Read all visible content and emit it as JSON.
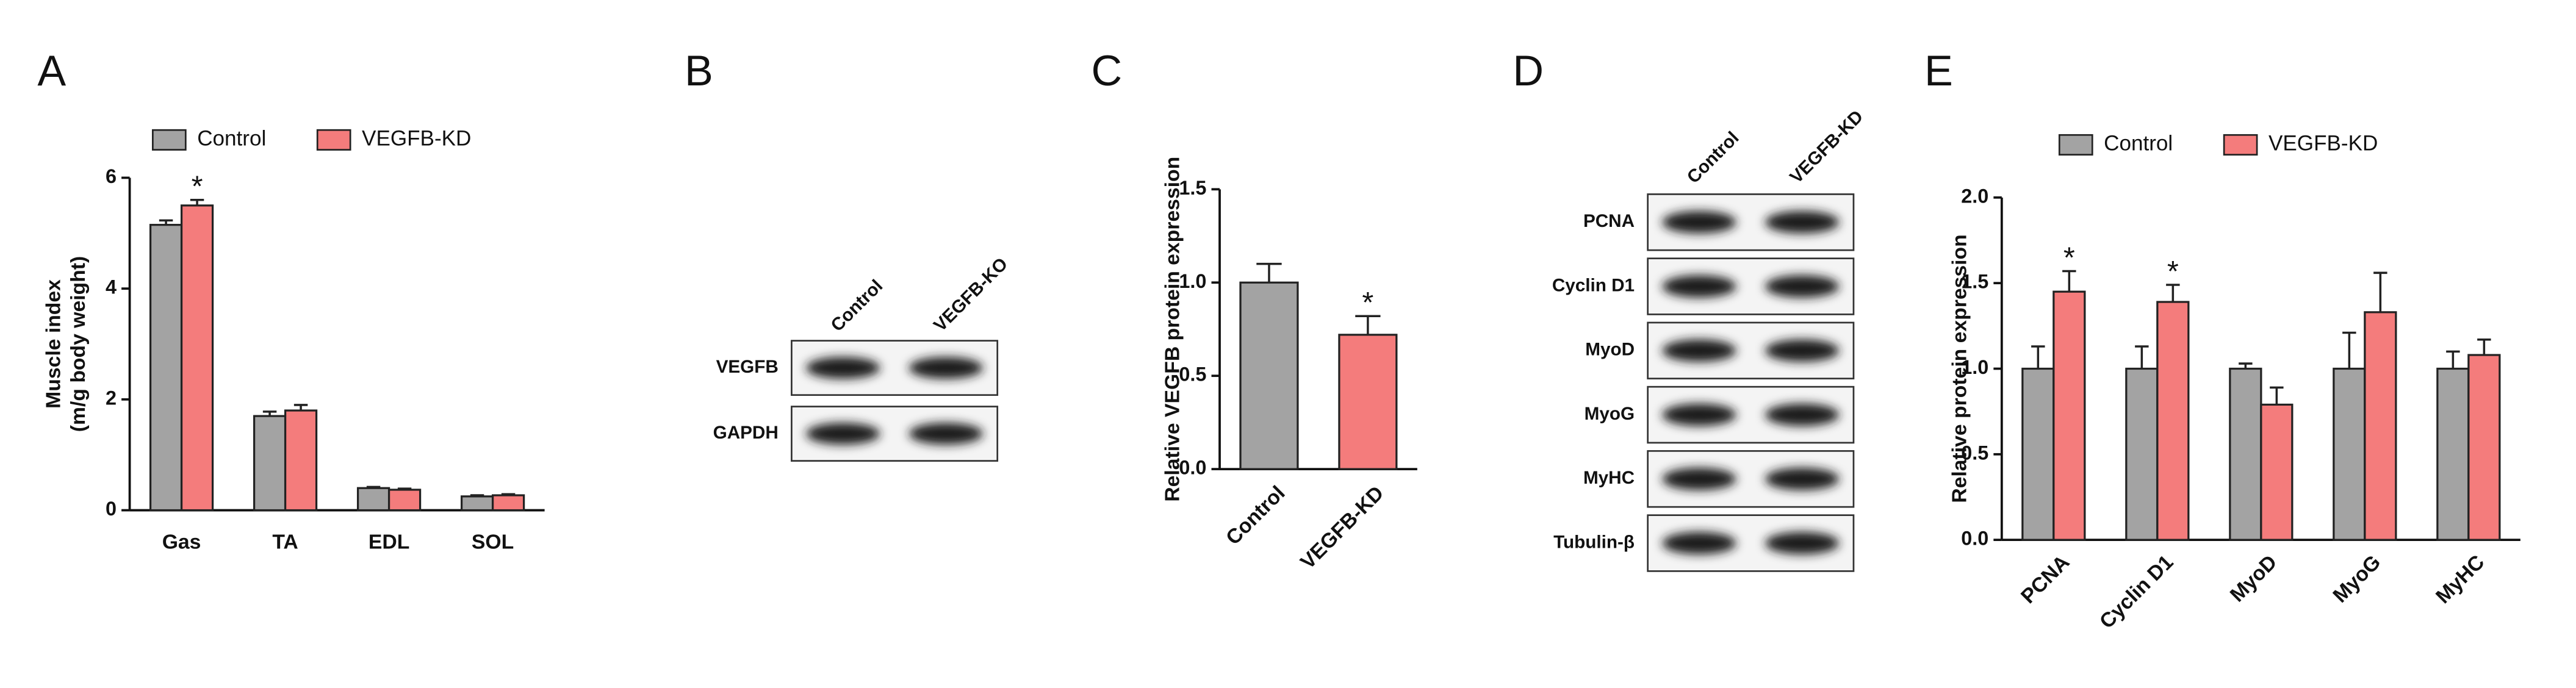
{
  "chart_data": [
    {
      "type": "bar",
      "panel": "A",
      "y_label": [
        "Muscle index",
        "(m/g body weight)"
      ],
      "categories": [
        "Gas",
        "TA",
        "EDL",
        "SOL"
      ],
      "series": [
        {
          "name": "Control",
          "color": "#a3a3a3",
          "values": [
            5.15,
            1.7,
            0.4,
            0.25
          ],
          "errors": [
            0.08,
            0.08,
            0.02,
            0.02
          ],
          "marks": [
            null,
            null,
            null,
            null
          ]
        },
        {
          "name": "VEGFB-KD",
          "color": "#f47c7c",
          "values": [
            5.5,
            1.8,
            0.37,
            0.27
          ],
          "errors": [
            0.1,
            0.1,
            0.02,
            0.02
          ],
          "marks": [
            "*",
            null,
            null,
            null
          ]
        }
      ],
      "ylim": [
        0,
        6
      ],
      "yticks": [
        0,
        2,
        4,
        6
      ],
      "legend": "top"
    },
    {
      "type": "bar",
      "panel": "C",
      "y_label": "Relative VEGFB protein expression",
      "categories": [
        "Control",
        "VEGFB-KD"
      ],
      "values": [
        1.0,
        0.72
      ],
      "errors": [
        0.1,
        0.1
      ],
      "colors": [
        "#a3a3a3",
        "#f47c7c"
      ],
      "marks": [
        null,
        "*"
      ],
      "ylim": [
        0,
        1.5
      ],
      "yticks": [
        {
          "value": 0,
          "label": "0.0"
        },
        {
          "value": 0.5,
          "label": "0.5"
        },
        {
          "value": 1,
          "label": "1.0"
        },
        {
          "value": 1.5,
          "label": "1.5"
        }
      ]
    },
    {
      "type": "bar",
      "panel": "E",
      "y_label": "Relative protein expression",
      "categories": [
        "PCNA",
        "Cyclin D1",
        "MyoD",
        "MyoG",
        "MyHC"
      ],
      "series": [
        {
          "name": "Control",
          "color": "#a3a3a3",
          "values": [
            1,
            1,
            1,
            1,
            1
          ],
          "errors": [
            0.13,
            0.13,
            0.03,
            0.21,
            0.1
          ],
          "marks": [
            null,
            null,
            null,
            null,
            null
          ]
        },
        {
          "name": "VEGFB-KD",
          "color": "#f47c7c",
          "values": [
            1.45,
            1.39,
            0.79,
            1.33,
            1.08
          ],
          "errors": [
            0.12,
            0.1,
            0.1,
            0.23,
            0.09
          ],
          "marks": [
            "*",
            "*",
            null,
            null,
            null
          ]
        }
      ],
      "ylim": [
        0,
        2
      ],
      "yticks": [
        {
          "value": 0,
          "label": "0.0"
        },
        {
          "value": 0.5,
          "label": "0.5"
        },
        {
          "value": 1,
          "label": "1.0"
        },
        {
          "value": 1.5,
          "label": "1.5"
        },
        {
          "value": 2,
          "label": "2.0"
        }
      ],
      "legend": "top"
    }
  ],
  "blots": [
    {
      "panel": "B",
      "columns": [
        "Control",
        "VEGFB-KO"
      ],
      "rows": [
        "VEGFB",
        "GAPDH"
      ]
    },
    {
      "panel": "D",
      "columns": [
        "Control",
        "VEGFB-KD"
      ],
      "rows": [
        "PCNA",
        "Cyclin D1",
        "MyoD",
        "MyoG",
        "MyHC",
        "Tubulin-β"
      ]
    }
  ]
}
